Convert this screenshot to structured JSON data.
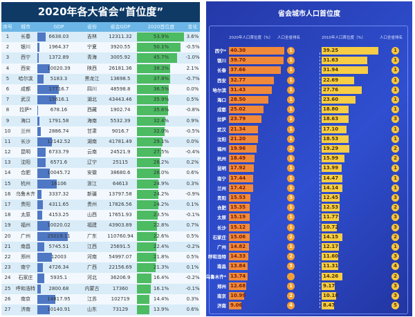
{
  "left": {
    "title": "2020年各大省会“首位度”",
    "headers": [
      "序号",
      "城市",
      "GDP",
      "省份",
      "省会GDP",
      "2020首位度",
      "变化"
    ],
    "rows": [
      [
        "1",
        "长春",
        "6638.03",
        "吉林",
        "12311.32",
        "53.9%",
        "3.6%"
      ],
      [
        "2",
        "银川",
        "1964.37",
        "宁夏",
        "3920.55",
        "50.1%",
        "-0.5%"
      ],
      [
        "3",
        "西宁",
        "1372.89",
        "青海",
        "3005.92",
        "45.7%",
        "-1.0%"
      ],
      [
        "4",
        "西安",
        "10020.39",
        "陕西",
        "26181.36",
        "38.3%",
        "2.1%"
      ],
      [
        "5",
        "哈尔滨",
        "5183.3",
        "黑龙江",
        "13698.5",
        "37.8%",
        "-0.7%"
      ],
      [
        "6",
        "成都",
        "17716.7",
        "四川",
        "48598.8",
        "36.5%",
        "0.0%"
      ],
      [
        "7",
        "武汉",
        "15616.1",
        "湖北",
        "43443.46",
        "35.9%",
        "0.5%"
      ],
      [
        "8",
        "拉萨*",
        "678.16",
        "西藏",
        "1902.74",
        "35.6%",
        "-0.8%"
      ],
      [
        "9",
        "海口",
        "1791.58",
        "海南",
        "5532.39",
        "32.4%",
        "0.9%"
      ],
      [
        "10",
        "兰州",
        "2886.74",
        "甘肃",
        "9016.7",
        "32.0%",
        "-0.5%"
      ],
      [
        "11",
        "长沙",
        "12142.52",
        "湖南",
        "41781.49",
        "29.1%",
        "0.0%"
      ],
      [
        "12",
        "昆明",
        "6733.79",
        "云南",
        "24521.9",
        "27.5%",
        "-0.4%"
      ],
      [
        "13",
        "沈阳",
        "6571.6",
        "辽宁",
        "25115",
        "26.2%",
        "0.2%"
      ],
      [
        "14",
        "合肥",
        "10045.72",
        "安徽",
        "38680.6",
        "26.0%",
        "0.6%"
      ],
      [
        "15",
        "杭州",
        "16106",
        "浙江",
        "64613",
        "24.9%",
        "0.3%"
      ],
      [
        "16",
        "乌鲁木齐",
        "3337.32",
        "新疆",
        "13797.58",
        "24.2%",
        "-0.9%"
      ],
      [
        "17",
        "贵阳",
        "4311.65",
        "贵州",
        "17826.56",
        "24.2%",
        "0.1%"
      ],
      [
        "18",
        "太原",
        "4153.25",
        "山西",
        "17651.93",
        "23.5%",
        "-0.1%"
      ],
      [
        "19",
        "福州",
        "10020.02",
        "福建",
        "43903.89",
        "22.8%",
        "0.7%"
      ],
      [
        "20",
        "广州",
        "25019.11",
        "广东",
        "110760.94",
        "22.6%",
        "0.5%"
      ],
      [
        "21",
        "南昌",
        "5745.51",
        "江西",
        "25691.5",
        "22.4%",
        "-0.2%"
      ],
      [
        "22",
        "郑州",
        "12003",
        "河南",
        "54997.07",
        "21.8%",
        "0.5%"
      ],
      [
        "23",
        "南宁",
        "4726.34",
        "广西",
        "22156.69",
        "21.3%",
        "0.1%"
      ],
      [
        "24",
        "石家庄",
        "5935.1",
        "河北",
        "36206.9",
        "16.4%",
        "-0.2%"
      ],
      [
        "25",
        "呼和浩特",
        "2800.68",
        "内蒙古",
        "17360",
        "16.1%",
        "-0.1%"
      ],
      [
        "26",
        "南京",
        "14817.95",
        "江苏",
        "102719",
        "14.4%",
        "0.3%"
      ],
      [
        "27",
        "济南",
        "10140.91",
        "山东",
        "73129",
        "13.9%",
        "0.6%"
      ]
    ]
  },
  "right": {
    "title": "省会城市人口首位度",
    "headers": [
      "2020年人口首位度（%）",
      "人口全省排名",
      "2010年人口首位度（%）",
      "人口全省排名"
    ],
    "rows": [
      [
        "西宁*",
        "40.30",
        "1",
        "39.25",
        "1"
      ],
      [
        "银川",
        "39.70",
        "1",
        "31.63",
        "1"
      ],
      [
        "长春",
        "37.66",
        "1",
        "31.94",
        "1"
      ],
      [
        "西安",
        "32.77",
        "1",
        "22.69",
        "1"
      ],
      [
        "哈尔滨",
        "31.43",
        "1",
        "27.76",
        "1"
      ],
      [
        "海口",
        "28.50",
        "1",
        "23.60",
        "1"
      ],
      [
        "成都",
        "25.02",
        "1",
        "18.80",
        "1"
      ],
      [
        "拉萨",
        "23.79",
        "1",
        "18.63",
        "3"
      ],
      [
        "武汉",
        "21.34",
        "1",
        "17.10",
        "1"
      ],
      [
        "沈阳",
        "21.20",
        "1",
        "18.53",
        "1"
      ],
      [
        "福州",
        "19.96",
        "2",
        "19.29",
        "2"
      ],
      [
        "杭州",
        "18.49",
        "1",
        "15.99",
        "2"
      ],
      [
        "昆明",
        "17.92",
        "1",
        "13.99",
        "1"
      ],
      [
        "南宁",
        "17.44",
        "1",
        "14.47",
        "1"
      ],
      [
        "兰州",
        "17.42",
        "1",
        "14.14",
        "1"
      ],
      [
        "贵阳",
        "15.53",
        "3",
        "12.45",
        "3"
      ],
      [
        "合肥",
        "15.35",
        "1",
        "12.53",
        "2"
      ],
      [
        "太原",
        "15.19",
        "1",
        "11.77",
        "3"
      ],
      [
        "长沙",
        "15.12",
        "1",
        "10.72",
        "3"
      ],
      [
        "石家庄",
        "15.06",
        "2",
        "14.15",
        "2"
      ],
      [
        "广州",
        "14.82",
        "1",
        "12.17",
        "1"
      ],
      [
        "呼和浩特",
        "14.33",
        "2",
        "11.60",
        "3"
      ],
      [
        "南昌",
        "13.84",
        "3",
        "11.31",
        "4"
      ],
      [
        "乌鲁木齐*",
        "13.74",
        "",
        "14.26",
        "2"
      ],
      [
        "郑州",
        "12.68",
        "1",
        "9.17",
        "3"
      ],
      [
        "南京",
        "10.99",
        "2",
        "10.18",
        "3"
      ],
      [
        "济南",
        "9.06",
        "4",
        "8.47",
        "5"
      ]
    ]
  },
  "colors": {
    "gdp_bar": "#4f78c4",
    "primacy_bar": "#4cbb62",
    "pop2020_bar": "#f08a3a",
    "pop2010_bar": "#f7cd45"
  }
}
